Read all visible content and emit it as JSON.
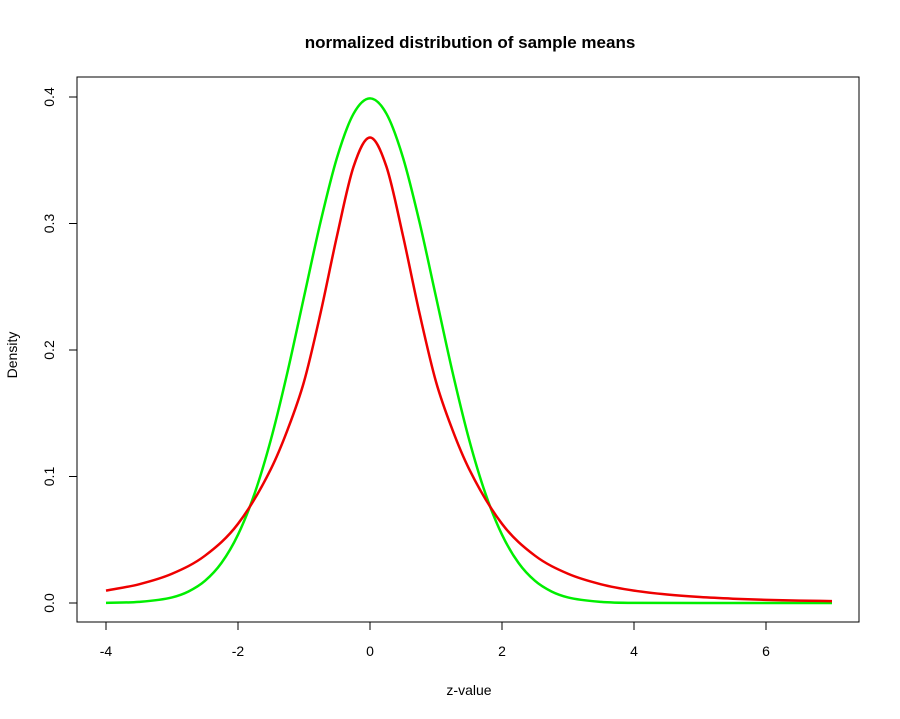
{
  "chart_data": {
    "type": "line",
    "title": "normalized distribution of sample means",
    "xlabel": "z-value",
    "ylabel": "Density",
    "xlim": [
      -4,
      7
    ],
    "ylim": [
      0,
      0.4
    ],
    "x_ticks": [
      -4,
      -2,
      0,
      2,
      4,
      6
    ],
    "x_tick_labels": [
      "-4",
      "-2",
      "0",
      "2",
      "4",
      "6"
    ],
    "y_ticks": [
      0.0,
      0.1,
      0.2,
      0.3,
      0.4
    ],
    "y_tick_labels": [
      "0.0",
      "0.1",
      "0.2",
      "0.3",
      "0.4"
    ],
    "grid": false,
    "series": [
      {
        "color": "#00ee00",
        "x": [
          -4,
          -3.5,
          -3,
          -2.75,
          -2.5,
          -2.25,
          -2,
          -1.75,
          -1.5,
          -1.25,
          -1,
          -0.75,
          -0.5,
          -0.25,
          0,
          0.25,
          0.5,
          0.75,
          1,
          1.25,
          1.5,
          1.75,
          2,
          2.25,
          2.5,
          2.75,
          3,
          3.5,
          4,
          5,
          6,
          7
        ],
        "y": [
          0.0001,
          0.0009,
          0.0044,
          0.0091,
          0.0175,
          0.0317,
          0.054,
          0.0863,
          0.1295,
          0.1826,
          0.242,
          0.3011,
          0.3521,
          0.3867,
          0.3989,
          0.3867,
          0.3521,
          0.3011,
          0.242,
          0.1826,
          0.1295,
          0.0863,
          0.054,
          0.0317,
          0.0175,
          0.0091,
          0.0044,
          0.0009,
          0.0001,
          0.0,
          0.0,
          0.0
        ]
      },
      {
        "color": "#ee0000",
        "x": [
          -4,
          -3.5,
          -3,
          -2.5,
          -2,
          -1.5,
          -1.25,
          -1,
          -0.75,
          -0.5,
          -0.25,
          0,
          0.25,
          0.5,
          0.75,
          1,
          1.25,
          1.5,
          2,
          2.5,
          3,
          3.5,
          4,
          4.5,
          5,
          5.5,
          6,
          6.5,
          7
        ],
        "y": [
          0.0098,
          0.0148,
          0.0231,
          0.0374,
          0.0626,
          0.1061,
          0.1368,
          0.1749,
          0.2291,
          0.2902,
          0.3448,
          0.368,
          0.3448,
          0.2902,
          0.2291,
          0.1749,
          0.1368,
          0.1061,
          0.0626,
          0.0374,
          0.0231,
          0.0148,
          0.0098,
          0.0067,
          0.0047,
          0.0034,
          0.0025,
          0.0019,
          0.0015
        ]
      }
    ]
  }
}
